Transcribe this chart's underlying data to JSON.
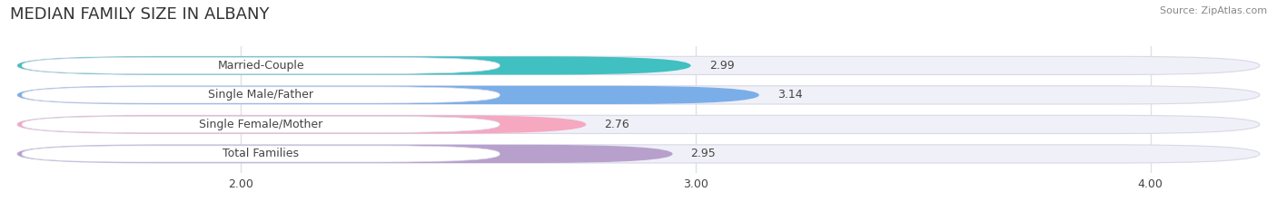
{
  "title": "MEDIAN FAMILY SIZE IN ALBANY",
  "source": "Source: ZipAtlas.com",
  "categories": [
    "Married-Couple",
    "Single Male/Father",
    "Single Female/Mother",
    "Total Families"
  ],
  "values": [
    2.99,
    3.14,
    2.76,
    2.95
  ],
  "bar_colors": [
    "#40c0c0",
    "#7aaee8",
    "#f5a8c0",
    "#b8a0cc"
  ],
  "bar_edge_colors": [
    "#c0e8e8",
    "#c0d0f0",
    "#f8d0e0",
    "#d8c8e8"
  ],
  "xlim_min": 1.5,
  "xlim_max": 4.25,
  "data_min": 2.0,
  "xticks": [
    2.0,
    3.0,
    4.0
  ],
  "xtick_labels": [
    "2.00",
    "3.00",
    "4.00"
  ],
  "background_color": "#ffffff",
  "bar_bg_color": "#f0f0f8",
  "bar_bg_edge_color": "#d8d8e8",
  "title_fontsize": 13,
  "label_fontsize": 9,
  "value_fontsize": 9,
  "bar_height": 0.62,
  "label_color": "#444444",
  "value_color": "#444444",
  "source_color": "#888888",
  "source_fontsize": 8,
  "grid_color": "#e0e0e8"
}
